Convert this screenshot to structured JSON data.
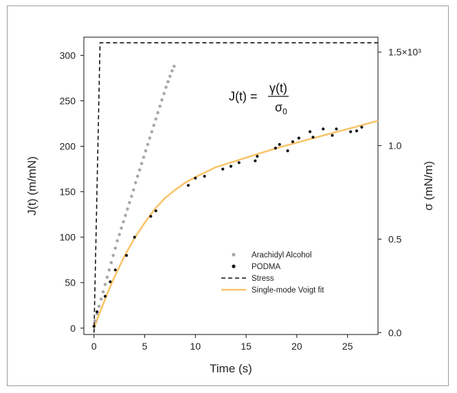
{
  "chart_data": {
    "type": "scatter",
    "xlabel": "Time (s)",
    "ylabel_left": "J(t) (m/mN)",
    "ylabel_right": "σ (mN/m)",
    "xlim": [
      -1,
      28
    ],
    "ylim_left": [
      -7,
      320
    ],
    "ylim_right": [
      -0.01,
      1.58
    ],
    "x_ticks": [
      0,
      5,
      10,
      15,
      20,
      25
    ],
    "x_tick_labels": [
      "0",
      "5",
      "10",
      "15",
      "20",
      "25"
    ],
    "y_left_ticks": [
      0,
      50,
      100,
      150,
      200,
      250,
      300
    ],
    "y_left_tick_labels": [
      "0",
      "50",
      "100",
      "150",
      "200",
      "250",
      "300"
    ],
    "y_right_ticks": [
      0,
      0.5,
      1.0,
      1.5
    ],
    "y_right_tick_labels": [
      "0.0",
      "0.5",
      "1.0",
      "1.5×10³"
    ],
    "annotation": {
      "lhs": "J(t) =",
      "numerator": "γ(t)",
      "denominator": "σ",
      "denominator_sub": "0"
    },
    "legend_placement": "lower-right",
    "series": [
      {
        "name": "Arachidyl Alcohol",
        "kind": "dense-points",
        "axis": "left",
        "color": "#a8a8a8",
        "x": [
          0.1,
          0.3,
          0.5,
          0.7,
          0.9,
          1.1,
          1.3,
          1.5,
          1.7,
          1.9,
          2.1,
          2.3,
          2.5,
          2.7,
          2.9,
          3.1,
          3.3,
          3.5,
          3.7,
          3.9,
          4.1,
          4.3,
          4.5,
          4.7,
          4.9,
          5.1,
          5.3,
          5.5,
          5.7,
          5.9,
          6.1,
          6.3,
          6.5,
          6.7,
          6.9,
          7.1,
          7.3,
          7.5,
          7.7,
          7.9
        ],
        "y": [
          8,
          16,
          24,
          32,
          40,
          48,
          56,
          64,
          72,
          80,
          88,
          96,
          103,
          110,
          117,
          124,
          131,
          138,
          145,
          152,
          160,
          167,
          174,
          181,
          188,
          195,
          202,
          209,
          216,
          223,
          230,
          237,
          244,
          251,
          258,
          265,
          271,
          277,
          283,
          288
        ]
      },
      {
        "name": "PODMA",
        "kind": "points",
        "axis": "left",
        "color": "#111111",
        "x": [
          0.0,
          0.3,
          1.1,
          1.6,
          2.1,
          3.2,
          4.0,
          5.6,
          6.1,
          9.3,
          10.0,
          10.9,
          12.7,
          13.5,
          14.3,
          15.9,
          16.1,
          17.9,
          18.3,
          19.1,
          19.6,
          20.2,
          21.3,
          21.6,
          22.6,
          23.5,
          23.9,
          25.3,
          25.9,
          26.4
        ],
        "y": [
          2,
          18,
          35,
          51,
          64,
          80,
          100,
          123,
          129,
          157,
          165,
          167,
          175,
          178,
          182,
          184,
          189,
          198,
          202,
          195,
          205,
          209,
          216,
          210,
          219,
          212,
          219,
          216,
          217,
          221
        ]
      },
      {
        "name": "Stress",
        "kind": "dashed-line",
        "axis": "right",
        "color": "#111111",
        "x": [
          0,
          0.6,
          28
        ],
        "y": [
          0,
          1.55,
          1.55
        ]
      },
      {
        "name": "Single-mode Voigt fit",
        "kind": "line",
        "axis": "left",
        "color": "#f9c46b",
        "x": [
          0,
          0.5,
          1,
          1.5,
          2,
          3,
          4,
          5,
          6,
          7,
          8,
          9,
          10,
          12,
          14,
          16,
          18,
          20,
          22,
          24,
          26,
          28
        ],
        "y": [
          0,
          15,
          29,
          43,
          56,
          79,
          99,
          116,
          131,
          143,
          152,
          160,
          166,
          177,
          184,
          191,
          198,
          204,
          210,
          216,
          222,
          228
        ]
      }
    ]
  }
}
